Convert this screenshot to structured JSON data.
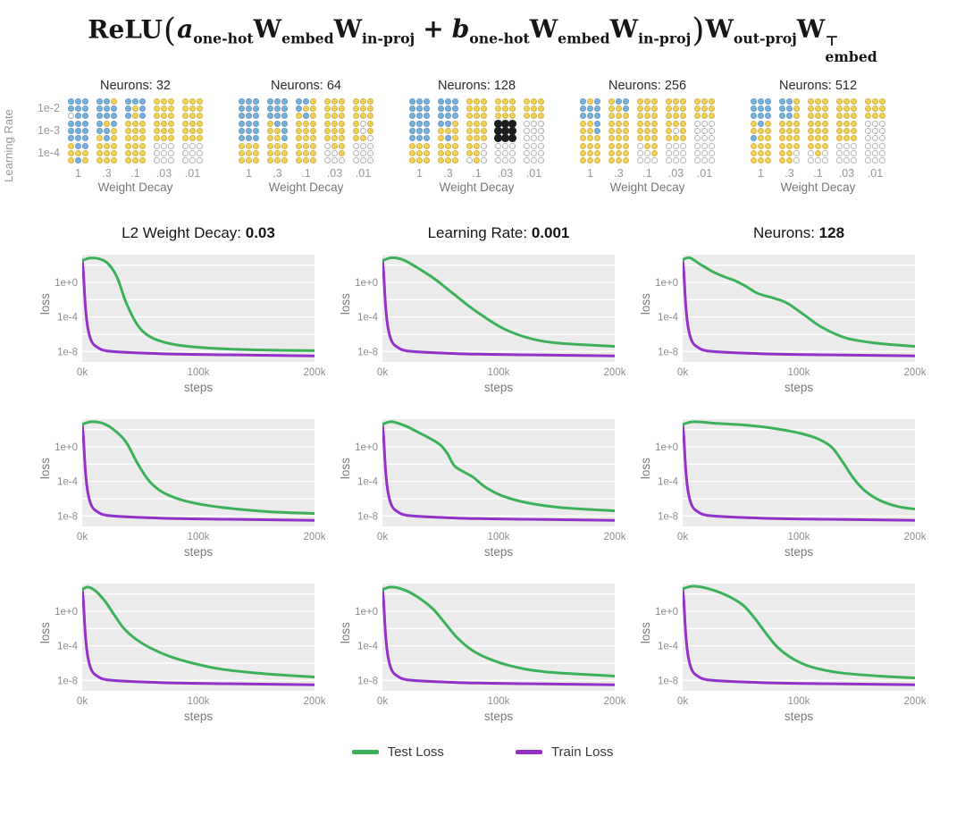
{
  "formula": {
    "segments": [
      {
        "t": "ReLU",
        "cls": "rm"
      },
      {
        "t": "(",
        "cls": "paren"
      },
      {
        "t": "a",
        "cls": "it",
        "sub": "one-hot"
      },
      {
        "t": "W",
        "cls": "bf",
        "sub": "embed"
      },
      {
        "t": "W",
        "cls": "bf",
        "sub": "in-proj"
      },
      {
        "t": "+",
        "cls": "op"
      },
      {
        "t": "b",
        "cls": "it",
        "sub": "one-hot"
      },
      {
        "t": "W",
        "cls": "bf",
        "sub": "embed"
      },
      {
        "t": "W",
        "cls": "bf",
        "sub": "in-proj"
      },
      {
        "t": ")",
        "cls": "paren"
      },
      {
        "t": "W",
        "cls": "bf",
        "sub": "out-proj"
      },
      {
        "t": "W",
        "cls": "bf",
        "sub": "embed",
        "sup": "⊤"
      }
    ]
  },
  "sweep": {
    "ylabel": "Learning Rate",
    "xlabel": "Weight Decay",
    "row_labels": [
      "1e-2",
      "1e-3",
      "1e-4"
    ],
    "col_labels": [
      "1",
      ".3",
      ".1",
      ".03",
      ".01"
    ],
    "dot_colors": {
      "b": "#76b1dc",
      "y": "#f1d156",
      "w": "#ffffff",
      "k": "#1e1e1e"
    },
    "highlighted_cell": {
      "panel": "Neurons: 128",
      "learning_rate": "1e-3",
      "weight_decay": ".03"
    },
    "panels": [
      {
        "title": "Neurons: 32",
        "cells": [
          [
            "bbbbbbwbb",
            "bbybbbbbb",
            "bbbbybbyb",
            "yyyyyyyyy",
            "yyyyyyyyy"
          ],
          [
            "bbbbbbbbb",
            "bybbbyyby",
            "yyyyyyyyy",
            "yyyyyyyyy",
            "yyyyyyyyy"
          ],
          [
            "ybbyyyyby",
            "yyyyyyyyy",
            "yyyyyyyyy",
            "wwwwwwwww",
            "wwwwwwwww"
          ]
        ]
      },
      {
        "title": "Neurons: 64",
        "cells": [
          [
            "bbbbbbbbb",
            "bbbbbbbbb",
            "bbybyyyby",
            "yyyyyyyyy",
            "yyyyyyyyy"
          ],
          [
            "bbbbbbbbb",
            "ybbyybyyb",
            "yyyyyyyyy",
            "yyyyyyyyy",
            "ywyywyyyw"
          ],
          [
            "yyyyyyyyy",
            "yyyyyyyyy",
            "yyyyyyyyy",
            "wyywwywww",
            "wwwwwwwww"
          ]
        ]
      },
      {
        "title": "Neurons: 128",
        "cells": [
          [
            "bbbbbbbbb",
            "bbbbbbbbb",
            "yyyyyyyyy",
            "yyyyyyyyy",
            "yyyyyyyyy"
          ],
          [
            "bbbbbbbbb",
            "bbyyyyyby",
            "yyyyyyyyy",
            "kkkkkkkkk",
            "wwwwwwwww"
          ],
          [
            "yyyyyyyyy",
            "yyyyyyyyy",
            "yywyywwyw",
            "wwwwwwwww",
            "wwwwwwwww"
          ]
        ]
      },
      {
        "title": "Neurons: 256",
        "cells": [
          [
            "bybbbbbbb",
            "ybbyybyyy",
            "yyyyyyyyy",
            "yyyyyyyyy",
            "yyyyyyyyy"
          ],
          [
            "yybyybyyy",
            "yyyyyyyyy",
            "yyyyyyyyy",
            "yyyywyyyy",
            "wwwwwwwww"
          ],
          [
            "yyyyyyyyy",
            "yyyyyyyyy",
            "wyywwywww",
            "wwwwwwwww",
            "wwwwwwwww"
          ]
        ]
      },
      {
        "title": "Neurons: 512",
        "cells": [
          [
            "bbbbbbbbb",
            "bbybbybby",
            "yyyyyyyyy",
            "yyyyyyyyy",
            "yyyyyyyyy"
          ],
          [
            "ybyyyybyy",
            "yyyyyyyyy",
            "yyyyyyyyy",
            "yyyyyyyyy",
            "wwwwwwwww"
          ],
          [
            "yyyyyyyyy",
            "yyyyywyyw",
            "yyywywwww",
            "wwwwwwwww",
            "wwwwwwwww"
          ]
        ]
      }
    ]
  },
  "chart_data": {
    "type": "line",
    "rows": 3,
    "cols": 3,
    "fixed_hyperparameters": [
      {
        "label": "L2 Weight Decay: ",
        "value": "0.03"
      },
      {
        "label": "Learning Rate: ",
        "value": "0.001"
      },
      {
        "label": "Neurons: ",
        "value": "128"
      }
    ],
    "xlabel": "steps",
    "ylabel": "loss",
    "x_ticks": [
      "0k",
      "100k",
      "200k"
    ],
    "x_tick_ksteps": [
      0,
      100,
      200
    ],
    "y_ticks": [
      "1e+0",
      "1e-4",
      "1e-8"
    ],
    "y_tick_log10": [
      0,
      -4,
      -8
    ],
    "gridline_log10": [
      2,
      0,
      -2,
      -4,
      -6,
      -8
    ],
    "x_range_ksteps": [
      0,
      200
    ],
    "y_log10_range": [
      3.2,
      -9.2
    ],
    "legend": [
      {
        "name": "Test Loss",
        "color": "#3bb25a"
      },
      {
        "name": "Train Loss",
        "color": "#9331c8"
      }
    ],
    "train_loss_log10_common": [
      [
        0,
        2.6
      ],
      [
        1,
        1.2
      ],
      [
        2,
        -1.2
      ],
      [
        3,
        -3.2
      ],
      [
        5,
        -5.4
      ],
      [
        8,
        -6.8
      ],
      [
        12,
        -7.4
      ],
      [
        20,
        -7.9
      ],
      [
        40,
        -8.1
      ],
      [
        80,
        -8.3
      ],
      [
        140,
        -8.4
      ],
      [
        200,
        -8.5
      ]
    ],
    "plots": [
      {
        "test_loss_log10": [
          [
            0,
            2.5
          ],
          [
            6,
            2.8
          ],
          [
            14,
            2.75
          ],
          [
            22,
            2.2
          ],
          [
            30,
            0.6
          ],
          [
            38,
            -2.4
          ],
          [
            48,
            -5.0
          ],
          [
            60,
            -6.4
          ],
          [
            80,
            -7.2
          ],
          [
            110,
            -7.6
          ],
          [
            150,
            -7.8
          ],
          [
            200,
            -7.9
          ]
        ]
      },
      {
        "test_loss_log10": [
          [
            0,
            2.5
          ],
          [
            8,
            2.85
          ],
          [
            18,
            2.6
          ],
          [
            30,
            1.7
          ],
          [
            45,
            0.4
          ],
          [
            60,
            -1.2
          ],
          [
            75,
            -2.8
          ],
          [
            90,
            -4.2
          ],
          [
            105,
            -5.4
          ],
          [
            125,
            -6.4
          ],
          [
            150,
            -7.0
          ],
          [
            200,
            -7.4
          ]
        ]
      },
      {
        "test_loss_log10": [
          [
            0,
            2.6
          ],
          [
            6,
            2.85
          ],
          [
            15,
            2.1
          ],
          [
            25,
            1.3
          ],
          [
            35,
            0.7
          ],
          [
            45,
            0.2
          ],
          [
            55,
            -0.5
          ],
          [
            65,
            -1.3
          ],
          [
            78,
            -1.8
          ],
          [
            90,
            -2.4
          ],
          [
            105,
            -3.8
          ],
          [
            120,
            -5.2
          ],
          [
            140,
            -6.4
          ],
          [
            165,
            -7.0
          ],
          [
            200,
            -7.4
          ]
        ]
      },
      {
        "test_loss_log10": [
          [
            0,
            2.6
          ],
          [
            8,
            2.9
          ],
          [
            18,
            2.7
          ],
          [
            28,
            1.9
          ],
          [
            38,
            0.5
          ],
          [
            48,
            -2.0
          ],
          [
            58,
            -4.0
          ],
          [
            70,
            -5.3
          ],
          [
            90,
            -6.3
          ],
          [
            120,
            -7.0
          ],
          [
            160,
            -7.5
          ],
          [
            200,
            -7.7
          ]
        ]
      },
      {
        "test_loss_log10": [
          [
            0,
            2.6
          ],
          [
            8,
            2.9
          ],
          [
            20,
            2.4
          ],
          [
            32,
            1.6
          ],
          [
            42,
            0.9
          ],
          [
            50,
            0.2
          ],
          [
            56,
            -0.8
          ],
          [
            62,
            -2.2
          ],
          [
            70,
            -2.9
          ],
          [
            78,
            -3.5
          ],
          [
            88,
            -4.6
          ],
          [
            102,
            -5.6
          ],
          [
            122,
            -6.4
          ],
          [
            152,
            -7.0
          ],
          [
            200,
            -7.4
          ]
        ]
      },
      {
        "test_loss_log10": [
          [
            0,
            2.6
          ],
          [
            10,
            2.9
          ],
          [
            30,
            2.7
          ],
          [
            55,
            2.5
          ],
          [
            80,
            2.1
          ],
          [
            100,
            1.6
          ],
          [
            115,
            1.0
          ],
          [
            128,
            0.0
          ],
          [
            138,
            -1.8
          ],
          [
            148,
            -3.8
          ],
          [
            158,
            -5.2
          ],
          [
            170,
            -6.2
          ],
          [
            185,
            -6.9
          ],
          [
            200,
            -7.2
          ]
        ]
      },
      {
        "test_loss_log10": [
          [
            0,
            2.5
          ],
          [
            5,
            2.8
          ],
          [
            12,
            2.3
          ],
          [
            20,
            1.1
          ],
          [
            28,
            -0.5
          ],
          [
            36,
            -2.0
          ],
          [
            46,
            -3.2
          ],
          [
            58,
            -4.2
          ],
          [
            75,
            -5.2
          ],
          [
            95,
            -6.0
          ],
          [
            120,
            -6.7
          ],
          [
            155,
            -7.2
          ],
          [
            200,
            -7.6
          ]
        ]
      },
      {
        "test_loss_log10": [
          [
            0,
            2.5
          ],
          [
            8,
            2.8
          ],
          [
            20,
            2.4
          ],
          [
            32,
            1.5
          ],
          [
            44,
            0.2
          ],
          [
            54,
            -1.4
          ],
          [
            64,
            -3.0
          ],
          [
            76,
            -4.4
          ],
          [
            90,
            -5.4
          ],
          [
            110,
            -6.3
          ],
          [
            140,
            -7.0
          ],
          [
            200,
            -7.5
          ]
        ]
      },
      {
        "test_loss_log10": [
          [
            0,
            2.6
          ],
          [
            10,
            2.9
          ],
          [
            25,
            2.5
          ],
          [
            40,
            1.7
          ],
          [
            52,
            0.7
          ],
          [
            62,
            -0.8
          ],
          [
            72,
            -2.6
          ],
          [
            82,
            -4.2
          ],
          [
            95,
            -5.5
          ],
          [
            110,
            -6.4
          ],
          [
            135,
            -7.1
          ],
          [
            170,
            -7.5
          ],
          [
            200,
            -7.7
          ]
        ]
      }
    ]
  }
}
